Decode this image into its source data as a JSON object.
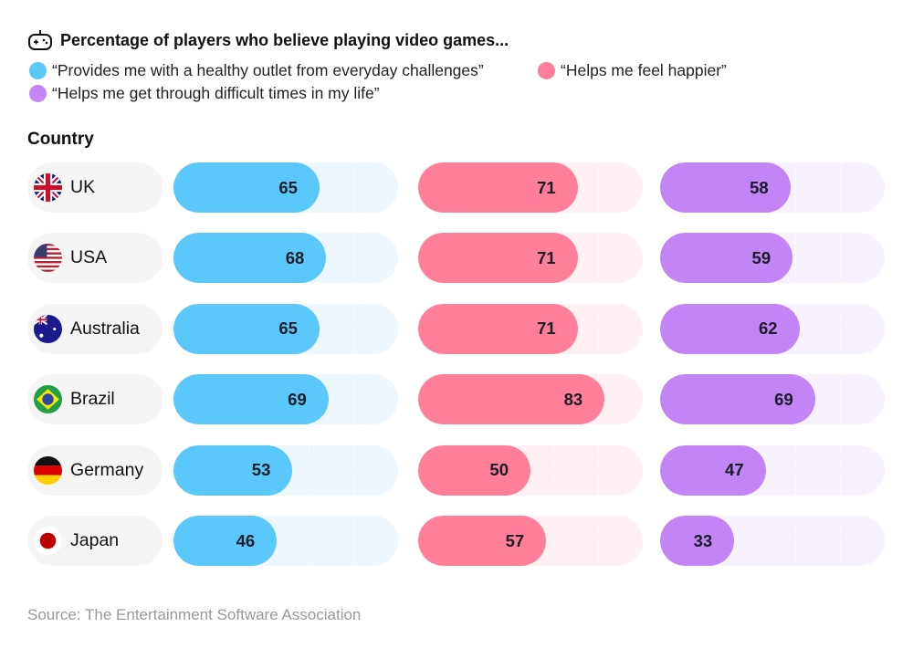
{
  "title": "Percentage of players who believe playing video games...",
  "title_icon": "gamepad-icon",
  "country_header": "Country",
  "source": "Source: The Entertainment Software Association",
  "chart_data": {
    "type": "bar",
    "orientation": "horizontal",
    "title": "Percentage of players who believe playing video games...",
    "xlim": [
      0,
      100
    ],
    "categories": [
      "UK",
      "USA",
      "Australia",
      "Brazil",
      "Germany",
      "Japan"
    ],
    "series": [
      {
        "name": "“Provides me with a healthy outlet from everyday challenges”",
        "color": "#5AC8FA",
        "track": "#EEF7FE",
        "values": [
          65,
          68,
          65,
          69,
          53,
          46
        ]
      },
      {
        "name": "“Helps me feel happier”",
        "color": "#FF7F9A",
        "track": "#FFF1F3",
        "values": [
          71,
          71,
          71,
          83,
          50,
          57
        ]
      },
      {
        "name": "“Helps me get through difficult times in my life”",
        "color": "#C384F5",
        "track": "#F8F1FE",
        "values": [
          58,
          59,
          62,
          69,
          47,
          33
        ]
      }
    ],
    "legend": "top-left",
    "data_labels": true
  }
}
